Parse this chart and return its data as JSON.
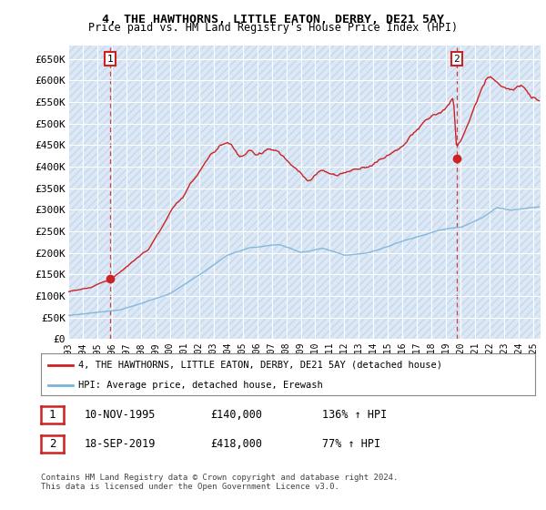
{
  "title1": "4, THE HAWTHORNS, LITTLE EATON, DERBY, DE21 5AY",
  "title2": "Price paid vs. HM Land Registry's House Price Index (HPI)",
  "ylabel_ticks": [
    "£0",
    "£50K",
    "£100K",
    "£150K",
    "£200K",
    "£250K",
    "£300K",
    "£350K",
    "£400K",
    "£450K",
    "£500K",
    "£550K",
    "£600K",
    "£650K"
  ],
  "ytick_vals": [
    0,
    50000,
    100000,
    150000,
    200000,
    250000,
    300000,
    350000,
    400000,
    450000,
    500000,
    550000,
    600000,
    650000
  ],
  "ylim": [
    0,
    680000
  ],
  "xlim_start": 1993.0,
  "xlim_end": 2025.5,
  "legend_line1": "4, THE HAWTHORNS, LITTLE EATON, DERBY, DE21 5AY (detached house)",
  "legend_line2": "HPI: Average price, detached house, Erewash",
  "sale1_label": "1",
  "sale1_date": "10-NOV-1995",
  "sale1_price": "£140,000",
  "sale1_hpi": "136% ↑ HPI",
  "sale2_label": "2",
  "sale2_date": "18-SEP-2019",
  "sale2_price": "£418,000",
  "sale2_hpi": "77% ↑ HPI",
  "footer": "Contains HM Land Registry data © Crown copyright and database right 2024.\nThis data is licensed under the Open Government Licence v3.0.",
  "hpi_color": "#7ab4d8",
  "price_color": "#cc2222",
  "point_color": "#cc2222",
  "marker1_x": 1995.86,
  "marker1_y": 140000,
  "marker2_x": 2019.72,
  "marker2_y": 418000,
  "bg_color": "#dce8f5",
  "hatch_color": "#c5d8ec"
}
